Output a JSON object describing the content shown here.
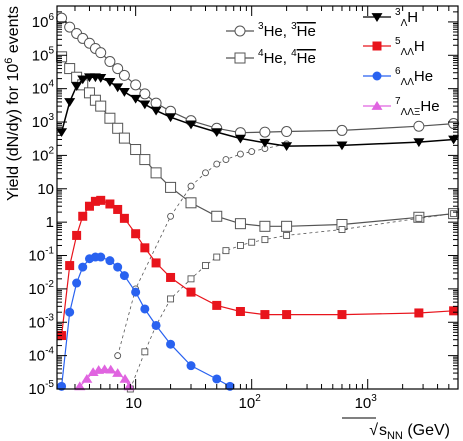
{
  "chart_data": {
    "type": "line",
    "xlabel": "√s_NN (GeV)",
    "xlabel_parts": {
      "sub": "NN",
      "unit": " (GeV)"
    },
    "ylabel": "Yield (dN/dy) for 10^6 events",
    "ylabel_parts": {
      "base": "Yield (dN/dy) for 10",
      "sup": "6",
      "tail": " events"
    },
    "x_scale": "log",
    "y_scale": "log",
    "xlim": [
      2.1,
      6000
    ],
    "ylim": [
      1e-05,
      3000000.0
    ],
    "x_ticks": [
      {
        "value": 10,
        "base": "10",
        "sup": ""
      },
      {
        "value": 100,
        "base": "10",
        "sup": "2"
      },
      {
        "value": 1000,
        "base": "10",
        "sup": "3"
      }
    ],
    "y_ticks": [
      {
        "value": 1000000.0,
        "base": "10",
        "sup": "6"
      },
      {
        "value": 100000.0,
        "base": "10",
        "sup": "5"
      },
      {
        "value": 10000.0,
        "base": "10",
        "sup": "4"
      },
      {
        "value": 1000.0,
        "base": "10",
        "sup": "3"
      },
      {
        "value": 100.0,
        "base": "10",
        "sup": "2"
      },
      {
        "value": 10,
        "base": "10",
        "sup": ""
      },
      {
        "value": 1,
        "base": "1",
        "sup": ""
      },
      {
        "value": 0.1,
        "base": "10",
        "sup": "-1"
      },
      {
        "value": 0.01,
        "base": "10",
        "sup": "-2"
      },
      {
        "value": 0.001,
        "base": "10",
        "sup": "-3"
      },
      {
        "value": 0.0001,
        "base": "10",
        "sup": "-4"
      },
      {
        "value": 1e-05,
        "base": "10",
        "sup": "-5"
      }
    ],
    "series": [
      {
        "name": "3He",
        "color": "#555555",
        "line": "solid",
        "marker": "circle-open",
        "x": [
          2.3,
          2.7,
          3.1,
          3.5,
          4,
          4.5,
          5,
          6,
          7,
          8,
          10,
          12,
          15,
          20,
          30,
          50,
          80,
          130,
          200,
          600,
          2760,
          5500
        ],
        "y": [
          1300000.0,
          700000.0,
          450000.0,
          320000.0,
          230000.0,
          160000.0,
          120000.0,
          65000.0,
          40000.0,
          25000.0,
          13000.0,
          7000.0,
          3700.0,
          2100.0,
          1100.0,
          650,
          480,
          500,
          520,
          560,
          750,
          900
        ]
      },
      {
        "name": "3He-bar",
        "color": "#555555",
        "line": "dashed",
        "marker": "circle-open-small",
        "x": [
          7,
          10,
          20,
          30,
          40,
          50,
          60,
          80,
          100,
          130,
          200
        ],
        "y": [
          0.0001,
          0.01,
          1.5,
          12,
          30,
          55,
          75,
          110,
          130,
          160,
          220
        ]
      },
      {
        "name": "4He",
        "color": "#555555",
        "line": "solid",
        "marker": "square-open",
        "x": [
          2.3,
          2.7,
          3.1,
          3.5,
          4,
          4.5,
          5,
          6,
          7,
          8,
          10,
          12,
          15,
          20,
          30,
          50,
          80,
          130,
          200,
          600,
          2760,
          5500
        ],
        "y": [
          90000.0,
          40000.0,
          22000.0,
          13000.0,
          7500.0,
          4500.0,
          3000.0,
          1300.0,
          650,
          330,
          150,
          75,
          30,
          11,
          3.8,
          1.5,
          0.9,
          0.75,
          0.75,
          0.85,
          1.4,
          1.8
        ]
      },
      {
        "name": "4He-bar",
        "color": "#555555",
        "line": "dashed",
        "marker": "square-open-small",
        "x": [
          9,
          12,
          15,
          20,
          30,
          40,
          50,
          60,
          80,
          100,
          130,
          200,
          600,
          2760,
          5500
        ],
        "y": [
          1e-05,
          0.00013,
          0.0008,
          0.005,
          0.02,
          0.05,
          0.09,
          0.14,
          0.2,
          0.25,
          0.3,
          0.4,
          0.6,
          1.3,
          1.8
        ]
      },
      {
        "name": "3ΛH",
        "color": "#000000",
        "line": "solid",
        "marker": "triangle-down",
        "x": [
          2.3,
          2.7,
          3.1,
          3.5,
          4,
          4.5,
          5,
          6,
          7,
          8,
          10,
          12,
          15,
          20,
          30,
          50,
          80,
          130,
          200,
          600,
          2760,
          5500
        ],
        "y": [
          500,
          4000.0,
          12000.0,
          19000.0,
          22000.0,
          22000.0,
          21000.0,
          16000.0,
          11000.0,
          8000.0,
          5000.0,
          3400.0,
          2200.0,
          1400.0,
          850,
          500,
          320,
          240,
          190,
          200,
          250,
          300
        ]
      },
      {
        "name": "5ΛΛH",
        "color": "#e8141c",
        "line": "solid",
        "marker": "square-filled",
        "x": [
          2.3,
          2.7,
          3.1,
          3.5,
          4,
          4.5,
          5,
          6,
          7,
          8,
          10,
          12,
          15,
          20,
          30,
          50,
          80,
          130,
          200,
          600,
          2760,
          5500
        ],
        "y": [
          0.0004,
          0.05,
          0.4,
          1.5,
          3,
          4.2,
          4.5,
          3.5,
          2.4,
          1.3,
          0.45,
          0.17,
          0.06,
          0.022,
          0.008,
          0.0032,
          0.0021,
          0.0017,
          0.0017,
          0.0017,
          0.0019,
          0.0022
        ]
      },
      {
        "name": "6ΛΛHe",
        "color": "#2962f0",
        "line": "solid",
        "marker": "circle-filled",
        "x": [
          2.3,
          2.7,
          3.1,
          3.5,
          4,
          4.5,
          5,
          6,
          7,
          8,
          10,
          12,
          15,
          20,
          30,
          50,
          65
        ],
        "y": [
          1.2e-05,
          0.002,
          0.015,
          0.045,
          0.08,
          0.09,
          0.09,
          0.07,
          0.045,
          0.025,
          0.008,
          0.0025,
          0.0008,
          0.00022,
          5e-05,
          2e-05,
          1.2e-05
        ]
      },
      {
        "name": "7ΛΛΞHe",
        "color": "#e064e0",
        "line": "solid",
        "marker": "triangle-up",
        "x": [
          3.3,
          3.8,
          4.3,
          4.8,
          5.4,
          6.1,
          7,
          8.1,
          8.8
        ],
        "y": [
          1.2e-05,
          2e-05,
          3.2e-05,
          3.7e-05,
          3.9e-05,
          3.8e-05,
          3e-05,
          2e-05,
          1.2e-05
        ]
      }
    ],
    "legend": {
      "left": [
        {
          "series": "3He",
          "pieces": [
            [
              "sup",
              "3"
            ],
            [
              "t",
              "He, "
            ],
            [
              "sup",
              "3"
            ],
            [
              "bar",
              "He"
            ]
          ]
        },
        {
          "series": "4He",
          "pieces": [
            [
              "sup",
              "4"
            ],
            [
              "t",
              "He, "
            ],
            [
              "sup",
              "4"
            ],
            [
              "bar",
              "He"
            ]
          ]
        }
      ],
      "right": [
        {
          "series": "3ΛH",
          "pieces": [
            [
              "sup",
              "3"
            ],
            [
              "sub",
              "Λ"
            ],
            [
              "t",
              "H"
            ]
          ]
        },
        {
          "series": "5ΛΛH",
          "pieces": [
            [
              "sup",
              "5"
            ],
            [
              "sub",
              "ΛΛ"
            ],
            [
              "t",
              "H"
            ]
          ]
        },
        {
          "series": "6ΛΛHe",
          "pieces": [
            [
              "sup",
              "6"
            ],
            [
              "sub",
              "ΛΛ"
            ],
            [
              "t",
              "He"
            ]
          ]
        },
        {
          "series": "7ΛΛΞHe",
          "pieces": [
            [
              "sup",
              "7"
            ],
            [
              "sub",
              "ΛΛΞ"
            ],
            [
              "t",
              "He"
            ]
          ]
        }
      ]
    }
  }
}
